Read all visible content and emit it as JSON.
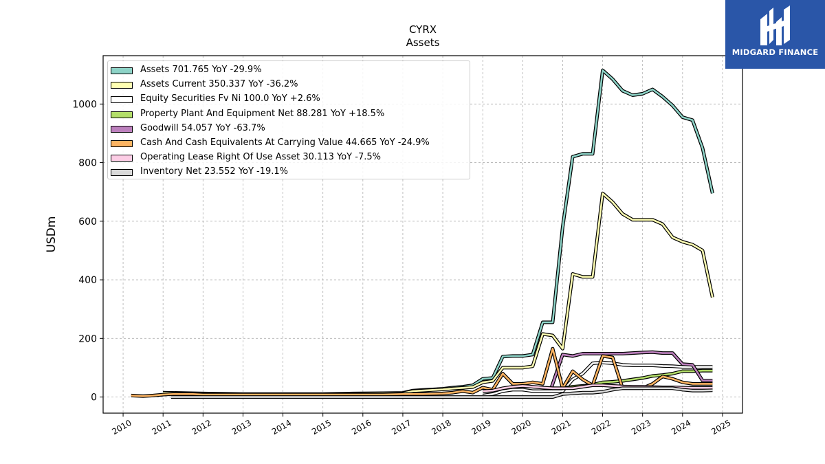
{
  "brand": {
    "name": "MIDGARD FINANCE",
    "logo_icon": "midgard-logo-icon",
    "color": "#2a56a8"
  },
  "chart_data": {
    "type": "line",
    "title": "CYRX",
    "subtitle": "Assets",
    "xlabel": "",
    "ylabel": "USDm",
    "xlim": [
      2009.5,
      2025.5
    ],
    "ylim": [
      -55,
      1165
    ],
    "x_ticks": [
      "2010",
      "2011",
      "2012",
      "2013",
      "2014",
      "2015",
      "2016",
      "2017",
      "2018",
      "2019",
      "2020",
      "2021",
      "2022",
      "2023",
      "2024",
      "2025"
    ],
    "y_ticks": [
      "0",
      "200",
      "400",
      "600",
      "800",
      "1000"
    ],
    "grid": true,
    "legend_position": "top-left",
    "series": [
      {
        "name": "Assets",
        "legend": "Assets  701.765 YoY -29.9%",
        "color": "#8dd3c7",
        "x": [
          2011.0,
          2012.0,
          2013.0,
          2014.0,
          2015.0,
          2015.75,
          2016.5,
          2017.0,
          2017.25,
          2017.5,
          2017.75,
          2018.0,
          2018.25,
          2018.5,
          2018.75,
          2019.0,
          2019.25,
          2019.5,
          2019.75,
          2020.0,
          2020.25,
          2020.5,
          2020.75,
          2021.0,
          2021.25,
          2021.5,
          2021.75,
          2022.0,
          2022.25,
          2022.5,
          2022.75,
          2023.0,
          2023.25,
          2023.5,
          2023.75,
          2024.0,
          2024.25,
          2024.5,
          2024.75
        ],
        "y": [
          15,
          12,
          10,
          10,
          10,
          12,
          13,
          14,
          22,
          24,
          26,
          28,
          32,
          35,
          40,
          62,
          65,
          138,
          140,
          140,
          145,
          255,
          255,
          580,
          820,
          830,
          830,
          1115,
          1085,
          1045,
          1030,
          1035,
          1050,
          1025,
          995,
          955,
          945,
          850,
          695
        ]
      },
      {
        "name": "Assets Current",
        "legend": "Assets Current  350.337 YoY -36.2%",
        "color": "#ffffb3",
        "x": [
          2011.0,
          2012.0,
          2013.0,
          2014.0,
          2015.0,
          2015.75,
          2016.5,
          2017.0,
          2017.25,
          2017.5,
          2017.75,
          2018.0,
          2018.25,
          2018.5,
          2018.75,
          2019.0,
          2019.25,
          2019.5,
          2019.75,
          2020.0,
          2020.25,
          2020.5,
          2020.75,
          2021.0,
          2021.25,
          2021.5,
          2021.75,
          2022.0,
          2022.25,
          2022.5,
          2022.75,
          2023.0,
          2023.25,
          2023.5,
          2023.75,
          2024.0,
          2024.25,
          2024.5,
          2024.75
        ],
        "y": [
          14,
          11,
          9,
          9,
          9,
          11,
          12,
          13,
          20,
          22,
          24,
          26,
          29,
          31,
          34,
          50,
          55,
          100,
          100,
          100,
          105,
          215,
          210,
          165,
          420,
          410,
          410,
          695,
          665,
          625,
          605,
          605,
          605,
          590,
          545,
          530,
          520,
          500,
          340
        ]
      },
      {
        "name": "Equity Securities Fv Ni",
        "legend": "Equity Securities Fv Ni  100.0 YoY +2.6%",
        "color": "#ffffff",
        "x": [
          2019.0,
          2019.25,
          2019.5,
          2019.75,
          2020.0,
          2020.25,
          2020.5,
          2020.75,
          2021.0,
          2021.25,
          2021.5,
          2021.75,
          2022.0,
          2022.25,
          2022.5,
          2022.75,
          2023.0,
          2023.25,
          2023.5,
          2023.75,
          2024.0,
          2024.25,
          2024.5,
          2024.75
        ],
        "y": [
          5,
          10,
          20,
          25,
          25,
          20,
          20,
          20,
          20,
          60,
          80,
          115,
          118,
          115,
          110,
          108,
          108,
          108,
          106,
          105,
          103,
          103,
          103,
          103
        ]
      },
      {
        "name": "Property Plant And Equipment Net",
        "legend": "Property Plant And Equipment Net  88.281 YoY +18.5%",
        "color": "#b3de69",
        "x": [
          2021.0,
          2021.25,
          2021.5,
          2021.75,
          2022.0,
          2022.25,
          2022.5,
          2022.75,
          2023.0,
          2023.25,
          2023.5,
          2023.75,
          2024.0,
          2024.25,
          2024.5,
          2024.75
        ],
        "y": [
          30,
          35,
          38,
          42,
          50,
          52,
          55,
          60,
          65,
          72,
          75,
          80,
          88,
          88,
          90,
          90
        ]
      },
      {
        "name": "Goodwill",
        "legend": "Goodwill  54.057 YoY -63.7%",
        "color": "#bc80bd",
        "x": [
          2020.7,
          2021.0,
          2021.25,
          2021.5,
          2021.75,
          2022.0,
          2022.25,
          2022.5,
          2022.75,
          2023.0,
          2023.25,
          2023.5,
          2023.75,
          2024.0,
          2024.25,
          2024.5,
          2024.75
        ],
        "y": [
          25,
          145,
          140,
          148,
          148,
          148,
          148,
          148,
          150,
          152,
          153,
          150,
          150,
          112,
          110,
          56,
          56
        ]
      },
      {
        "name": "Cash And Cash Equivalents At Carrying Value",
        "legend": "Cash And Cash Equivalents At Carrying Value  44.665 YoY -24.9%",
        "color": "#fdb462",
        "x": [
          2010.2,
          2010.5,
          2010.75,
          2011.0,
          2011.25,
          2011.5,
          2011.75,
          2012.0,
          2012.5,
          2013.0,
          2013.5,
          2014.0,
          2014.5,
          2015.0,
          2015.5,
          2016.0,
          2016.5,
          2017.0,
          2017.5,
          2018.0,
          2018.25,
          2018.5,
          2018.75,
          2019.0,
          2019.25,
          2019.5,
          2019.75,
          2020.0,
          2020.25,
          2020.5,
          2020.75,
          2021.0,
          2021.25,
          2021.5,
          2021.75,
          2022.0,
          2022.25,
          2022.5,
          2022.75,
          2023.0,
          2023.25,
          2023.5,
          2023.75,
          2024.0,
          2024.25,
          2024.5,
          2024.75
        ],
        "y": [
          5,
          3,
          5,
          8,
          10,
          10,
          10,
          8,
          8,
          8,
          8,
          8,
          8,
          8,
          8,
          8,
          8,
          10,
          10,
          12,
          15,
          20,
          15,
          32,
          25,
          80,
          45,
          45,
          50,
          45,
          165,
          30,
          88,
          60,
          40,
          140,
          135,
          30,
          30,
          30,
          45,
          70,
          62,
          50,
          45,
          45,
          45
        ]
      },
      {
        "name": "Operating Lease Right Of Use Asset",
        "legend": "Operating Lease Right Of Use Asset  30.113 YoY -7.5%",
        "color": "#fccde5",
        "x": [
          2019.0,
          2019.25,
          2019.5,
          2019.75,
          2020.0,
          2020.25,
          2020.5,
          2020.75,
          2021.0,
          2021.25,
          2021.5,
          2021.75,
          2022.0,
          2022.25,
          2022.5,
          2022.75,
          2023.0,
          2023.25,
          2023.5,
          2023.75,
          2024.0,
          2024.25,
          2024.5,
          2024.75
        ],
        "y": [
          20,
          22,
          30,
          35,
          38,
          35,
          32,
          30,
          30,
          30,
          35,
          40,
          40,
          38,
          36,
          35,
          35,
          34,
          33,
          33,
          32,
          31,
          31,
          31
        ]
      },
      {
        "name": "Inventory Net",
        "legend": "Inventory Net  23.552 YoY -19.1%",
        "color": "#d9d9d9",
        "x": [
          2011.2,
          2012.0,
          2013.0,
          2014.0,
          2015.0,
          2016.0,
          2017.0,
          2018.0,
          2019.0,
          2020.0,
          2020.75,
          2021.0,
          2021.5,
          2021.75,
          2022.0,
          2022.25,
          2022.5,
          2022.75,
          2023.0,
          2023.25,
          2023.5,
          2023.75,
          2024.0,
          2024.25,
          2024.5,
          2024.75
        ],
        "y": [
          0,
          0,
          0,
          0,
          0,
          0,
          0,
          0,
          0,
          0,
          0,
          10,
          15,
          15,
          18,
          25,
          30,
          30,
          30,
          30,
          30,
          30,
          25,
          22,
          22,
          23
        ]
      }
    ]
  }
}
